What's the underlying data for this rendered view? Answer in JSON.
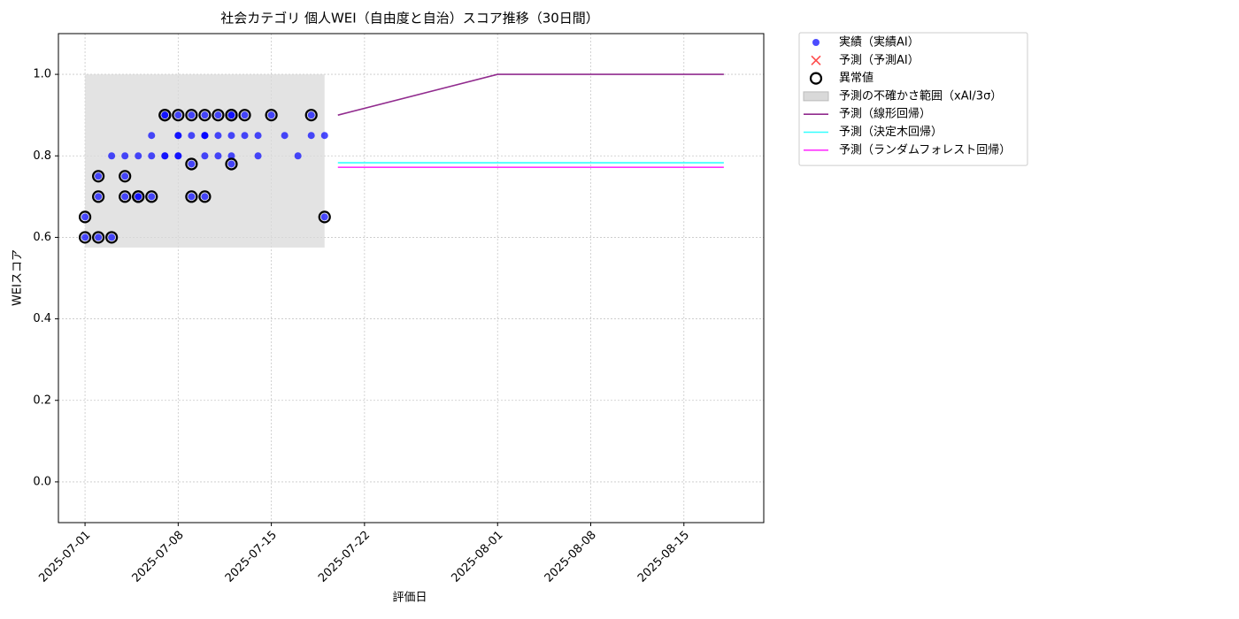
{
  "chart_data": {
    "type": "scatter",
    "title": "社会カテゴリ 個人WEI（自由度と自治）スコア推移（30日間）",
    "xlabel": "評価日",
    "ylabel": "WEIスコア",
    "xlim": [
      "2025-06-29",
      "2025-08-21"
    ],
    "xticks": [
      "2025-07-01",
      "2025-07-08",
      "2025-07-15",
      "2025-07-22",
      "2025-08-01",
      "2025-08-08",
      "2025-08-15"
    ],
    "ylim": [
      -0.1,
      1.1
    ],
    "yticks": [
      {
        "value": 0,
        "label": "0.0"
      },
      0.2,
      0.4,
      0.6,
      0.8,
      {
        "value": 1,
        "label": "1.0"
      }
    ],
    "grid": true,
    "legend": "outside upper right",
    "band": {
      "name": "予測の不確かさ範囲（xAI/3σ）",
      "color": "#d9d9d9",
      "x": [
        "2025-07-01",
        "2025-07-19"
      ],
      "low": 0.575,
      "high": 1.0
    },
    "series": [
      {
        "name": "実績（実績AI）",
        "style": "dot",
        "color": "#0000ff",
        "x": [
          "2025-07-01",
          "2025-07-01",
          "2025-07-02",
          "2025-07-02",
          "2025-07-02",
          "2025-07-03",
          "2025-07-03",
          "2025-07-04",
          "2025-07-04",
          "2025-07-04",
          "2025-07-05",
          "2025-07-05",
          "2025-07-05",
          "2025-07-06",
          "2025-07-06",
          "2025-07-06",
          "2025-07-07",
          "2025-07-07",
          "2025-07-07",
          "2025-07-07",
          "2025-07-08",
          "2025-07-08",
          "2025-07-08",
          "2025-07-08",
          "2025-07-08",
          "2025-07-09",
          "2025-07-09",
          "2025-07-09",
          "2025-07-09",
          "2025-07-10",
          "2025-07-10",
          "2025-07-10",
          "2025-07-10",
          "2025-07-10",
          "2025-07-10",
          "2025-07-11",
          "2025-07-11",
          "2025-07-11",
          "2025-07-12",
          "2025-07-12",
          "2025-07-12",
          "2025-07-12",
          "2025-07-12",
          "2025-07-13",
          "2025-07-13",
          "2025-07-14",
          "2025-07-14",
          "2025-07-15",
          "2025-07-16",
          "2025-07-17",
          "2025-07-18",
          "2025-07-18",
          "2025-07-19",
          "2025-07-19"
        ],
        "values": [
          0.65,
          0.6,
          0.7,
          0.75,
          0.6,
          0.6,
          0.8,
          0.75,
          0.8,
          0.7,
          0.7,
          0.8,
          0.7,
          0.7,
          0.8,
          0.85,
          0.9,
          0.8,
          0.9,
          0.8,
          0.85,
          0.8,
          0.85,
          0.8,
          0.9,
          0.78,
          0.7,
          0.9,
          0.85,
          0.9,
          0.85,
          0.8,
          0.85,
          0.7,
          0.85,
          0.9,
          0.85,
          0.8,
          0.9,
          0.8,
          0.78,
          0.9,
          0.85,
          0.9,
          0.85,
          0.85,
          0.8,
          0.9,
          0.85,
          0.8,
          0.9,
          0.85,
          0.65,
          0.85
        ]
      },
      {
        "name": "予測（予測AI）",
        "style": "cross",
        "color": "#ff0000",
        "x": [],
        "values": []
      },
      {
        "name": "異常値",
        "style": "ring",
        "color": "#000000",
        "x": [
          "2025-07-01",
          "2025-07-01",
          "2025-07-02",
          "2025-07-02",
          "2025-07-02",
          "2025-07-03",
          "2025-07-04",
          "2025-07-04",
          "2025-07-05",
          "2025-07-05",
          "2025-07-06",
          "2025-07-07",
          "2025-07-07",
          "2025-07-08",
          "2025-07-09",
          "2025-07-09",
          "2025-07-09",
          "2025-07-10",
          "2025-07-10",
          "2025-07-11",
          "2025-07-12",
          "2025-07-12",
          "2025-07-12",
          "2025-07-13",
          "2025-07-15",
          "2025-07-18",
          "2025-07-19"
        ],
        "values": [
          0.65,
          0.6,
          0.7,
          0.75,
          0.6,
          0.6,
          0.75,
          0.7,
          0.7,
          0.7,
          0.7,
          0.9,
          0.9,
          0.9,
          0.78,
          0.7,
          0.9,
          0.9,
          0.7,
          0.9,
          0.9,
          0.78,
          0.9,
          0.9,
          0.9,
          0.9,
          0.65
        ]
      },
      {
        "name": "予測（線形回帰）",
        "style": "line",
        "color": "#912b8e",
        "x": [
          "2025-07-20",
          "2025-08-01",
          "2025-08-18"
        ],
        "values": [
          0.9,
          1.0,
          1.0
        ]
      },
      {
        "name": "予測（決定木回帰）",
        "style": "line",
        "color": "#33ffff",
        "x": [
          "2025-07-20",
          "2025-08-18"
        ],
        "values": [
          0.783,
          0.783
        ]
      },
      {
        "name": "予測（ランダムフォレスト回帰）",
        "style": "line",
        "color": "#ff33ff",
        "x": [
          "2025-07-20",
          "2025-08-18"
        ],
        "values": [
          0.772,
          0.772
        ]
      }
    ]
  }
}
